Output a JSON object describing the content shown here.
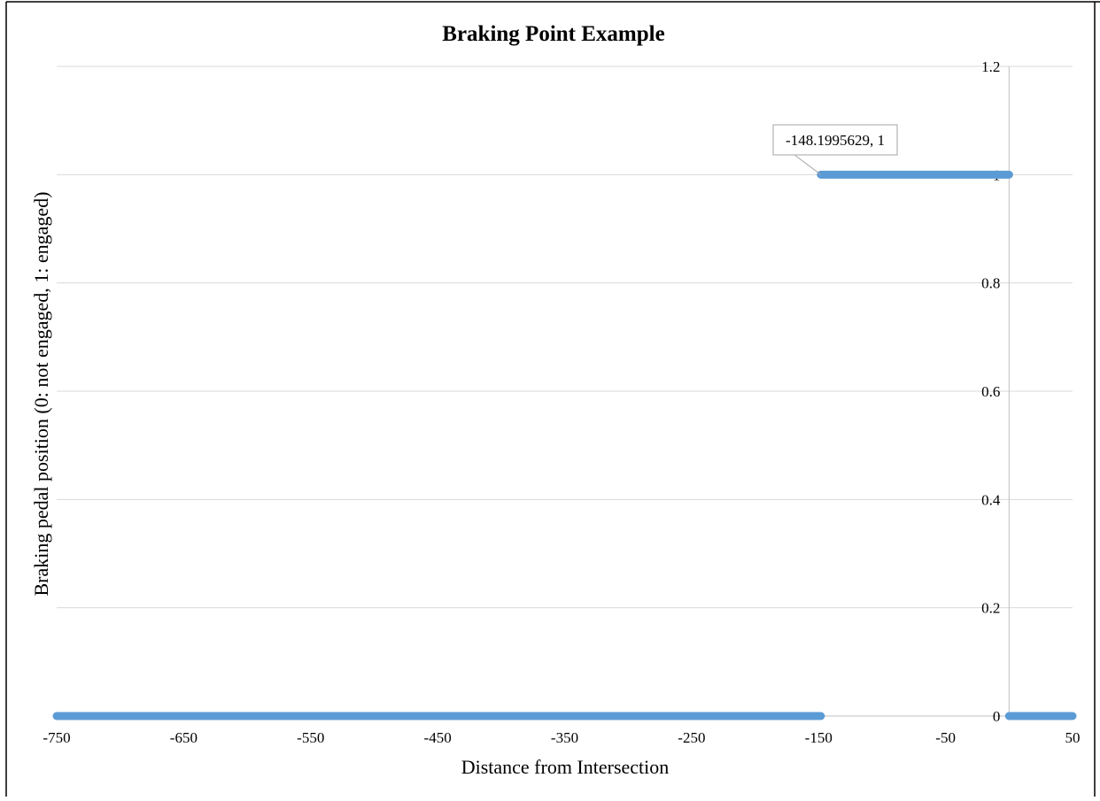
{
  "chart_data": {
    "type": "scatter",
    "title": "Braking Point Example",
    "xlabel": "Distance from Intersection",
    "ylabel": "Braking pedal position (0: not engaged,  1: engaged)",
    "xlim": [
      -750,
      50
    ],
    "ylim": [
      0,
      1.2
    ],
    "x_ticks": [
      -750,
      -650,
      -550,
      -450,
      -350,
      -250,
      -150,
      -50,
      50
    ],
    "y_ticks": [
      0,
      0.2,
      0.4,
      0.6,
      0.8,
      1,
      1.2
    ],
    "y_axis_crosses_x_at": 0,
    "grid": "horizontal",
    "legend": "none",
    "series": [
      {
        "color": "#5B9BD5",
        "segments": [
          {
            "x_start": -750,
            "x_end": -148.1995629,
            "y": 0
          },
          {
            "x_start": -148.1995629,
            "x_end": 0,
            "y": 1
          },
          {
            "x_start": 0,
            "x_end": 50,
            "y": 0
          }
        ]
      }
    ],
    "annotations": [
      {
        "text": "-148.1995629, 1",
        "x": -148.1995629,
        "y": 1
      }
    ]
  }
}
